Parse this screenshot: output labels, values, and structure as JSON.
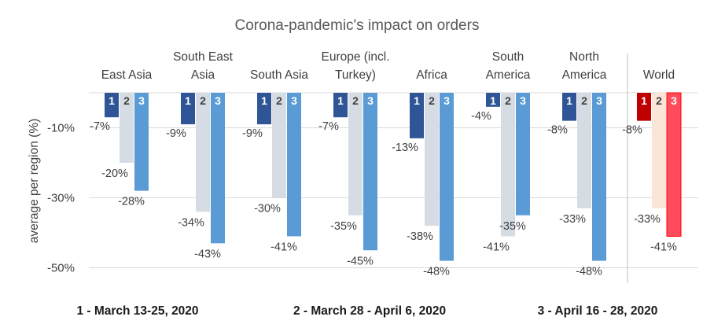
{
  "chart_data": {
    "type": "bar",
    "title": "Corona-pandemic's impact on orders",
    "ylabel": "average per region (%)",
    "ylim": [
      -54,
      0
    ],
    "yticks": [
      -10,
      -30,
      -50
    ],
    "ytick_labels": [
      "-10%",
      "-30%",
      "-50%"
    ],
    "grid": true,
    "categories": [
      "East Asia",
      "South East Asia",
      "South Asia",
      "Europe (incl. Turkey)",
      "Africa",
      "South America",
      "North America",
      "World"
    ],
    "category_lines": [
      [
        "East Asia"
      ],
      [
        "South East",
        "Asia"
      ],
      [
        "South Asia"
      ],
      [
        "Europe (incl.",
        "Turkey)"
      ],
      [
        "Africa"
      ],
      [
        "South",
        "America"
      ],
      [
        "North",
        "America"
      ],
      [
        "World"
      ]
    ],
    "series": [
      {
        "index_label": "1",
        "values": [
          -7,
          -9,
          -9,
          -7,
          -13,
          -4,
          -8,
          -8
        ],
        "labels": [
          "-7%",
          "-9%",
          "-9%",
          "-7%",
          "-13%",
          "-4%",
          "-8%",
          "-8%"
        ]
      },
      {
        "index_label": "2",
        "values": [
          -20,
          -34,
          -30,
          -35,
          -38,
          -41,
          -33,
          -33
        ],
        "labels": [
          "-20%",
          "-34%",
          "-30%",
          "-35%",
          "-38%",
          "-41%",
          "-33%",
          "-33%"
        ]
      },
      {
        "index_label": "3",
        "values": [
          -28,
          -43,
          -41,
          -45,
          -48,
          -35,
          -48,
          -41
        ],
        "labels": [
          "-28%",
          "-43%",
          "-41%",
          "-45%",
          "-48%",
          "-35%",
          "-48%",
          "-41%"
        ]
      }
    ],
    "periods": [
      "1 - March 13-25, 2020",
      "2 - March 28 - April 6, 2020",
      "3 - April 16 - 28, 2020"
    ],
    "colors": {
      "regions": [
        "#2f5597",
        "#d6dce4",
        "#5b9bd5"
      ],
      "world": [
        "#c00000",
        "#fbe5d6",
        "#ff4b5c"
      ],
      "world_border": "#ff0000",
      "gridline": "#d9d9d9",
      "separator": "#bfbfbf"
    }
  }
}
